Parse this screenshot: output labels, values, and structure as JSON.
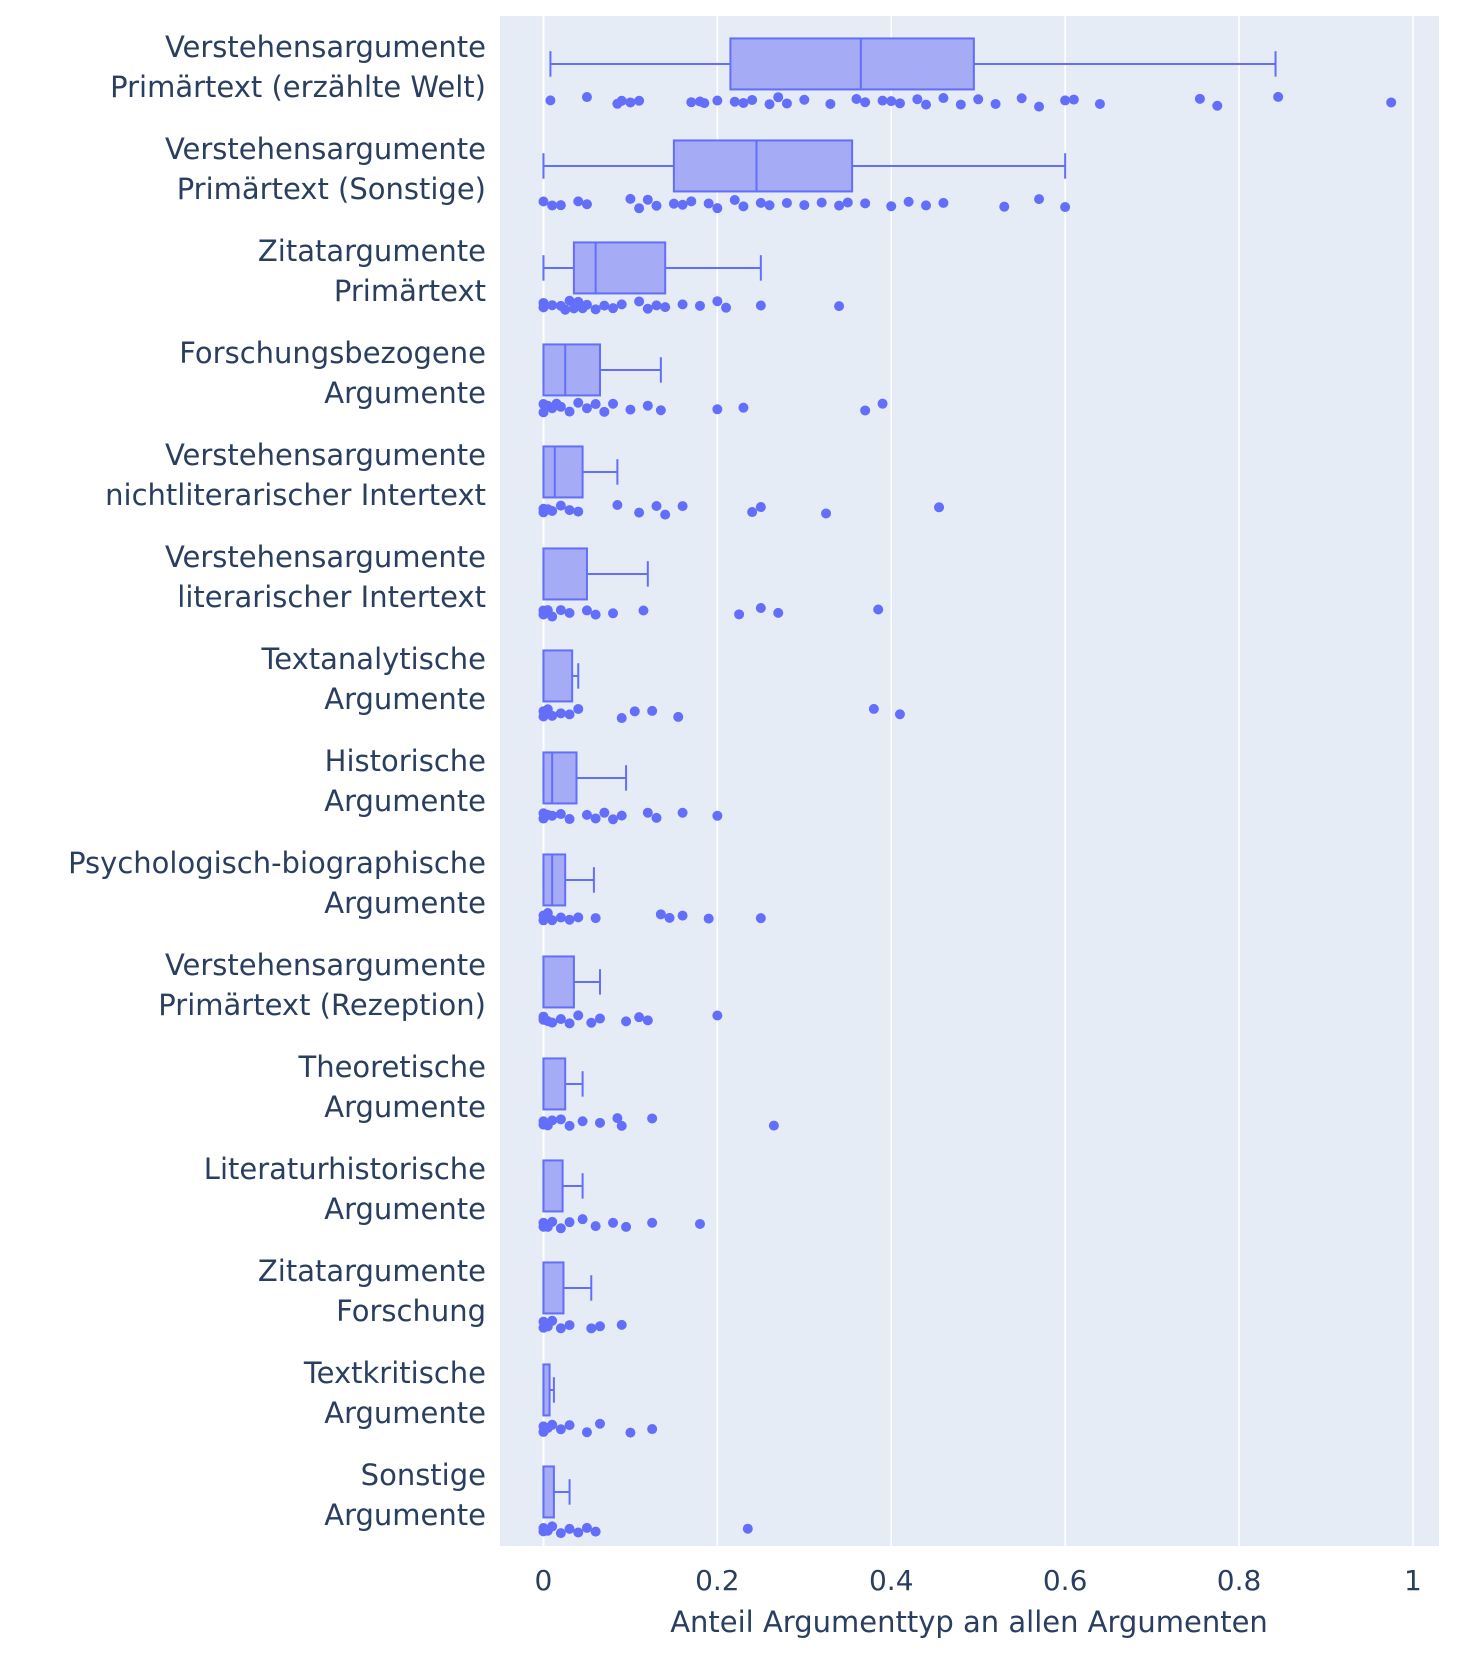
{
  "chart_data": {
    "type": "box",
    "orientation": "horizontal",
    "xlabel": "Anteil Argumenttyp an allen Argumenten",
    "xlim": [
      -0.05,
      1.03
    ],
    "xticks": [
      {
        "value": 0,
        "label": "0"
      },
      {
        "value": 0.2,
        "label": "0.2"
      },
      {
        "value": 0.4,
        "label": "0.4"
      },
      {
        "value": 0.6,
        "label": "0.6"
      },
      {
        "value": 0.8,
        "label": "0.8"
      },
      {
        "value": 1,
        "label": "1"
      }
    ],
    "grid": true,
    "boxpoints": "all",
    "colors": {
      "plot_bg": "#e5ecf6",
      "grid": "#ffffff",
      "box_fill": "#a5abf5",
      "box_line": "#636efa",
      "point": "#636efa",
      "text": "#2a3f5f"
    },
    "categories": [
      {
        "label": [
          "Verstehensargumente",
          "Primärtext (erzählte Welt)"
        ],
        "q1": 0.215,
        "median": 0.365,
        "q3": 0.495,
        "lower": 0.008,
        "upper": 0.842,
        "points": [
          0.008,
          0.05,
          0.085,
          0.09,
          0.1,
          0.11,
          0.17,
          0.18,
          0.185,
          0.2,
          0.22,
          0.23,
          0.24,
          0.26,
          0.27,
          0.28,
          0.3,
          0.33,
          0.36,
          0.37,
          0.39,
          0.4,
          0.41,
          0.43,
          0.44,
          0.46,
          0.48,
          0.5,
          0.52,
          0.55,
          0.57,
          0.6,
          0.61,
          0.64,
          0.755,
          0.775,
          0.845,
          0.975
        ]
      },
      {
        "label": [
          "Verstehensargumente",
          "Primärtext (Sonstige)"
        ],
        "q1": 0.15,
        "median": 0.245,
        "q3": 0.355,
        "lower": 0.0,
        "upper": 0.6,
        "points": [
          0.0,
          0.01,
          0.02,
          0.04,
          0.05,
          0.1,
          0.11,
          0.12,
          0.13,
          0.15,
          0.16,
          0.17,
          0.19,
          0.2,
          0.22,
          0.23,
          0.25,
          0.26,
          0.28,
          0.3,
          0.32,
          0.34,
          0.35,
          0.37,
          0.4,
          0.42,
          0.44,
          0.46,
          0.53,
          0.57,
          0.6
        ]
      },
      {
        "label": [
          "Zitatargumente",
          "Primärtext"
        ],
        "q1": 0.035,
        "median": 0.06,
        "q3": 0.14,
        "lower": 0.0,
        "upper": 0.25,
        "points": [
          0.0,
          0.0,
          0.01,
          0.02,
          0.025,
          0.03,
          0.035,
          0.04,
          0.045,
          0.05,
          0.06,
          0.07,
          0.08,
          0.09,
          0.11,
          0.12,
          0.13,
          0.14,
          0.16,
          0.18,
          0.2,
          0.21,
          0.25,
          0.34
        ]
      },
      {
        "label": [
          "Forschungsbezogene",
          "Argumente"
        ],
        "q1": 0.0,
        "median": 0.025,
        "q3": 0.065,
        "lower": 0.0,
        "upper": 0.135,
        "points": [
          0.0,
          0.0,
          0.005,
          0.01,
          0.015,
          0.02,
          0.03,
          0.04,
          0.05,
          0.06,
          0.07,
          0.08,
          0.1,
          0.12,
          0.135,
          0.2,
          0.23,
          0.37,
          0.39
        ]
      },
      {
        "label": [
          "Verstehensargumente",
          "nichtliterarischer Intertext"
        ],
        "q1": 0.0,
        "median": 0.013,
        "q3": 0.045,
        "lower": 0.0,
        "upper": 0.085,
        "points": [
          0.0,
          0.0,
          0.005,
          0.01,
          0.02,
          0.03,
          0.04,
          0.085,
          0.11,
          0.13,
          0.14,
          0.16,
          0.24,
          0.25,
          0.325,
          0.455
        ]
      },
      {
        "label": [
          "Verstehensargumente",
          "literarischer Intertext"
        ],
        "q1": 0.0,
        "median": 0.0,
        "q3": 0.05,
        "lower": 0.0,
        "upper": 0.12,
        "points": [
          0.0,
          0.0,
          0.005,
          0.01,
          0.02,
          0.03,
          0.05,
          0.06,
          0.08,
          0.115,
          0.225,
          0.25,
          0.27,
          0.385
        ]
      },
      {
        "label": [
          "Textanalytische",
          "Argumente"
        ],
        "q1": 0.0,
        "median": 0.0,
        "q3": 0.033,
        "lower": 0.0,
        "upper": 0.04,
        "points": [
          0.0,
          0.0,
          0.005,
          0.01,
          0.02,
          0.03,
          0.04,
          0.09,
          0.105,
          0.125,
          0.155,
          0.38,
          0.41
        ]
      },
      {
        "label": [
          "Historische",
          "Argumente"
        ],
        "q1": 0.0,
        "median": 0.01,
        "q3": 0.038,
        "lower": 0.0,
        "upper": 0.095,
        "points": [
          0.0,
          0.0,
          0.005,
          0.01,
          0.02,
          0.03,
          0.05,
          0.06,
          0.07,
          0.08,
          0.09,
          0.12,
          0.13,
          0.16,
          0.2
        ]
      },
      {
        "label": [
          "Psychologisch-biographische",
          "Argumente"
        ],
        "q1": 0.0,
        "median": 0.01,
        "q3": 0.025,
        "lower": 0.0,
        "upper": 0.058,
        "points": [
          0.0,
          0.0,
          0.005,
          0.01,
          0.02,
          0.03,
          0.04,
          0.06,
          0.135,
          0.145,
          0.16,
          0.19,
          0.25
        ]
      },
      {
        "label": [
          "Verstehensargumente",
          "Primärtext (Rezeption)"
        ],
        "q1": 0.0,
        "median": 0.0,
        "q3": 0.035,
        "lower": 0.0,
        "upper": 0.065,
        "points": [
          0.0,
          0.0,
          0.005,
          0.01,
          0.02,
          0.03,
          0.04,
          0.055,
          0.065,
          0.095,
          0.11,
          0.12,
          0.2
        ]
      },
      {
        "label": [
          "Theoretische",
          "Argumente"
        ],
        "q1": 0.0,
        "median": 0.0,
        "q3": 0.025,
        "lower": 0.0,
        "upper": 0.045,
        "points": [
          0.0,
          0.0,
          0.005,
          0.01,
          0.02,
          0.03,
          0.045,
          0.065,
          0.085,
          0.09,
          0.125,
          0.265
        ]
      },
      {
        "label": [
          "Literaturhistorische",
          "Argumente"
        ],
        "q1": 0.0,
        "median": 0.0,
        "q3": 0.022,
        "lower": 0.0,
        "upper": 0.045,
        "points": [
          0.0,
          0.0,
          0.005,
          0.01,
          0.02,
          0.03,
          0.045,
          0.06,
          0.08,
          0.095,
          0.125,
          0.18
        ]
      },
      {
        "label": [
          "Zitatargumente",
          "Forschung"
        ],
        "q1": 0.0,
        "median": 0.0,
        "q3": 0.023,
        "lower": 0.0,
        "upper": 0.055,
        "points": [
          0.0,
          0.0,
          0.005,
          0.01,
          0.02,
          0.03,
          0.055,
          0.065,
          0.09
        ]
      },
      {
        "label": [
          "Textkritische",
          "Argumente"
        ],
        "q1": 0.0,
        "median": 0.0,
        "q3": 0.007,
        "lower": 0.0,
        "upper": 0.012,
        "points": [
          0.0,
          0.0,
          0.005,
          0.01,
          0.02,
          0.03,
          0.05,
          0.065,
          0.1,
          0.125
        ]
      },
      {
        "label": [
          "Sonstige",
          "Argumente"
        ],
        "q1": 0.0,
        "median": 0.0,
        "q3": 0.012,
        "lower": 0.0,
        "upper": 0.03,
        "points": [
          0.0,
          0.0,
          0.005,
          0.01,
          0.02,
          0.03,
          0.04,
          0.05,
          0.06,
          0.235
        ]
      }
    ]
  }
}
